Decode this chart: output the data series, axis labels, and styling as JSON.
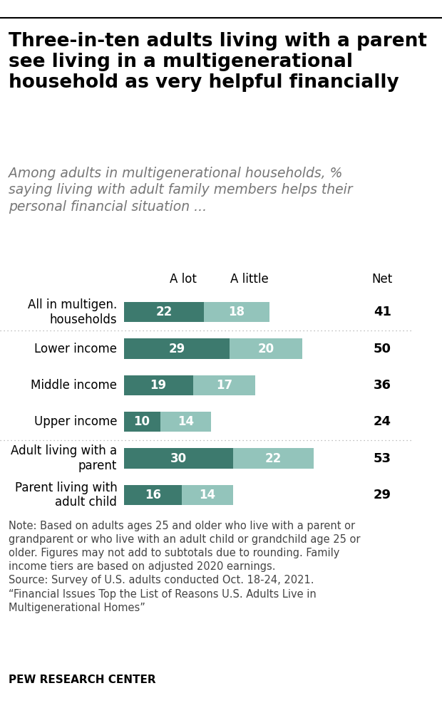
{
  "title": "Three-in-ten adults living with a parent\nsee living in a multigenerational\nhousehold as very helpful financially",
  "subtitle": "Among adults in multigenerational households, %\nsaying living with adult family members helps their\npersonal financial situation ...",
  "col_headers": [
    "A lot",
    "A little",
    "Net"
  ],
  "categories": [
    "All in multigen.\nhouseholds",
    "Lower income",
    "Middle income",
    "Upper income",
    "Adult living with a\nparent",
    "Parent living with\nadult child"
  ],
  "a_lot": [
    22,
    29,
    19,
    10,
    30,
    16
  ],
  "a_little": [
    18,
    20,
    17,
    14,
    22,
    14
  ],
  "net": [
    41,
    50,
    36,
    24,
    53,
    29
  ],
  "color_a_lot": "#3d7a6e",
  "color_a_little": "#93c4bb",
  "bar_height": 0.55,
  "note": "Note: Based on adults ages 25 and older who live with a parent or\ngrandparent or who live with an adult child or grandchild age 25 or\nolder. Figures may not add to subtotals due to rounding. Family\nincome tiers are based on adjusted 2020 earnings.\nSource: Survey of U.S. adults conducted Oct. 18-24, 2021.\n“Financial Issues Top the List of Reasons U.S. Adults Live in\nMultigenerational Homes”",
  "footer": "PEW RESEARCH CENTER",
  "separator_after": [
    0,
    3
  ],
  "bg_color": "#ffffff",
  "title_fontsize": 19,
  "subtitle_fontsize": 13.5,
  "label_fontsize": 12,
  "bar_label_fontsize": 12,
  "note_fontsize": 10.5,
  "footer_fontsize": 11
}
